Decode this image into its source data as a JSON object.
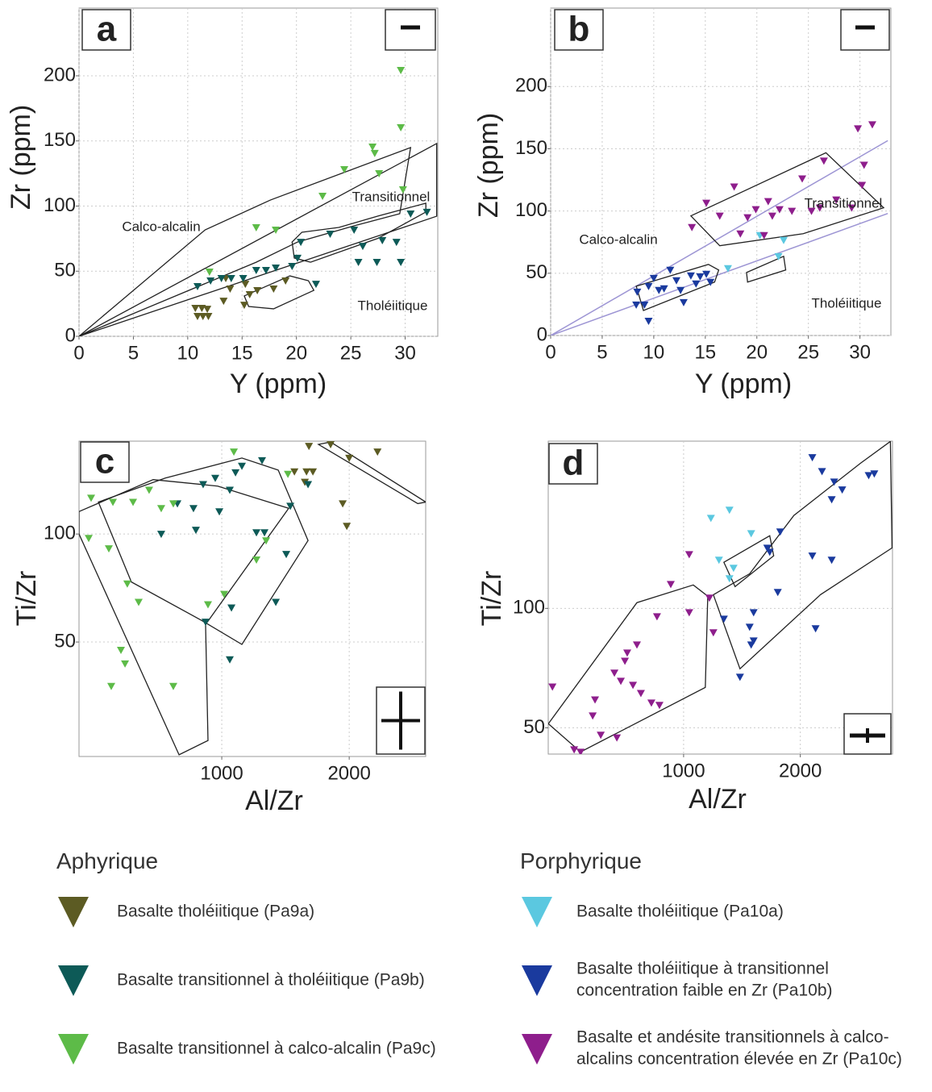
{
  "chart_data": [
    {
      "type": "scatter",
      "title": "a",
      "x_label": "Y (ppm)",
      "y_label": "Zr (ppm)",
      "legend_title": "Aphyrique",
      "xlim": [
        0,
        33
      ],
      "ylim": [
        0,
        252
      ],
      "xticks": [
        0,
        5,
        10,
        15,
        20,
        25,
        30
      ],
      "yticks": [
        0,
        50,
        100,
        150,
        200
      ],
      "grid": true,
      "annotations": [
        "Calco-alcalin",
        "Transitionnel",
        "Tholéiitique"
      ],
      "fields": [
        {
          "x": [
            0,
            11.6,
            17.6,
            30.5,
            29.5,
            25.3,
            20.1,
            16.3
          ],
          "y": [
            0,
            81.7,
            104.6,
            144.9,
            94.1,
            84.8,
            72.4,
            56.9
          ]
        },
        {
          "x": [
            0,
            32.9,
            32.9
          ],
          "y": [
            0,
            148,
            92.2
          ]
        },
        {
          "x": [
            19.6,
            20.5,
            23.9,
            27.5,
            31.9,
            31.9,
            27.5,
            21.3,
            19.8
          ],
          "y": [
            72.4,
            79.9,
            83.6,
            92.3,
            102.2,
            95.4,
            75.2,
            56.9,
            60.1
          ]
        },
        {
          "x": [
            15.2,
            19.4,
            21.1,
            21.6,
            17.9,
            15.6
          ],
          "y": [
            31,
            46.4,
            42.7,
            35.3,
            21.1,
            22.9
          ]
        }
      ],
      "series": [
        {
          "name": "Basalte tholéiitique (Pa9a)",
          "color": "#5c5b23",
          "x": [
            10.7,
            11.3,
            11.8,
            10.9,
            11.4,
            11.9,
            13.5,
            13.9,
            13.3,
            15.3,
            15.7,
            16.4,
            15.2,
            17.9,
            19
          ],
          "values": [
            21.7,
            21.7,
            21,
            15.5,
            15.5,
            15.5,
            44.6,
            36.5,
            27.2,
            40.2,
            32.2,
            35.3,
            24.1,
            36.5,
            42.7
          ]
        },
        {
          "name": "Basalte transitionnel à tholéiitique (Pa9b)",
          "color": "#0d5a57",
          "x": [
            10.9,
            12.1,
            13.1,
            14,
            15.1,
            16.3,
            17.2,
            18.1,
            19.6,
            20.1,
            20.4,
            21.8,
            23.1,
            25.3,
            26.1,
            25.7,
            27.4,
            27.9,
            29.2,
            29.6,
            30.5,
            32
          ],
          "values": [
            38.4,
            42.7,
            44.6,
            44.6,
            44.6,
            50.8,
            50.8,
            52.6,
            53.9,
            60.1,
            72.4,
            40.2,
            78.6,
            81.7,
            69.3,
            57,
            57,
            73.7,
            72.4,
            57,
            94.1,
            95.4
          ]
        },
        {
          "name": "Basalte transitionnel à calco-alcalin (Pa9c)",
          "color": "#5dbb48",
          "x": [
            29.6,
            29.6,
            27,
            27.2,
            24.4,
            27.6,
            22.4,
            16.3,
            18.1,
            12,
            29.8
          ],
          "values": [
            204.3,
            160.4,
            145.5,
            140.6,
            128.2,
            125.1,
            107.7,
            83.6,
            81.7,
            49.5,
            112.7
          ]
        }
      ]
    },
    {
      "type": "scatter",
      "title": "b",
      "x_label": "Y (ppm)",
      "y_label": "Zr (ppm)",
      "legend_title": "Porphyrique",
      "xlim": [
        0,
        33
      ],
      "ylim": [
        0,
        263
      ],
      "xticks": [
        0,
        5,
        10,
        15,
        20,
        25,
        30
      ],
      "yticks": [
        0,
        50,
        100,
        150,
        200
      ],
      "grid": true,
      "annotations": [
        "Calco-alcalin",
        "Transitionnel",
        "Tholéiitique"
      ],
      "boundaries": [
        {
          "x": [
            0,
            32.7
          ],
          "y": [
            0,
            156.5
          ],
          "color": "#9d95d4"
        },
        {
          "x": [
            0,
            32.7
          ],
          "y": [
            0,
            98
          ],
          "color": "#9d95d4"
        }
      ],
      "fields": [
        {
          "x": [
            13.6,
            16.4,
            24.5,
            32.3,
            26.7
          ],
          "y": [
            96.1,
            72.1,
            81.8,
            102.6,
            146.8
          ]
        },
        {
          "x": [
            8.3,
            15.3,
            16.3,
            15.9,
            9
          ],
          "y": [
            39.6,
            57.1,
            52.6,
            42.9,
            20.1
          ]
        },
        {
          "x": [
            19,
            22.6,
            22.8,
            19.1
          ],
          "y": [
            50.6,
            63.6,
            52.6,
            42.9
          ]
        }
      ],
      "series": [
        {
          "name": "Basalte tholéiitique (Pa10a)",
          "color": "#5bc8e0",
          "x": [
            22.6,
            22.1,
            17.2,
            20.3
          ],
          "values": [
            76.6,
            63.6,
            53.9,
            80.5
          ]
        },
        {
          "name": "Basalte tholéiitique à transitionnel concentration faible en Zr (Pa10b)",
          "color": "#1a3a9e",
          "x": [
            8.4,
            9.1,
            9.5,
            10,
            10.5,
            11,
            11.6,
            12.2,
            12.6,
            12.9,
            13.6,
            14.1,
            14.5,
            15.1,
            15.5,
            9.5,
            8.3
          ],
          "values": [
            35.1,
            24.7,
            39.6,
            46.1,
            36.4,
            37.7,
            52.6,
            44.2,
            36.4,
            26.6,
            48.1,
            41.6,
            47.4,
            49.4,
            42.9,
            11.7,
            24.7
          ]
        },
        {
          "name": "Basalte et andésite transitionnels à calco-alcalins concentration élevée en Zr (Pa10c)",
          "color": "#8e1e8c",
          "x": [
            15.1,
            17.8,
            13.7,
            16.4,
            19.9,
            21.1,
            22.2,
            23.4,
            24.4,
            26.5,
            29.8,
            31.2,
            30.4,
            20.7,
            18.4,
            19.1,
            21.5,
            25.3,
            26.1,
            27.7,
            29.2,
            30.2
          ],
          "values": [
            106.5,
            119.5,
            87,
            96.1,
            101.3,
            107.8,
            101.3,
            100,
            126,
            140.3,
            166.2,
            169.5,
            137,
            80.5,
            81.8,
            94.8,
            96.1,
            100,
            102.6,
            109.1,
            102.6,
            120.8
          ]
        }
      ]
    },
    {
      "type": "scatter",
      "title": "c",
      "x_label": "Al/Zr",
      "y_label": "Ti/Zr",
      "xlim": [
        -120,
        2600
      ],
      "ylim": [
        -3,
        143
      ],
      "xticks": [
        1000,
        2000
      ],
      "yticks": [
        50,
        100
      ],
      "grid": true,
      "fields": [
        {
          "x": [
            32,
            557,
            1158,
            1443,
            1677,
            1158,
            842,
            291
          ],
          "y": [
            114.8,
            125.9,
            135.2,
            129.6,
            97,
            48.9,
            60,
            77.8
          ]
        },
        {
          "x": [
            -120,
            462,
            968,
            1525,
            873,
            892,
            665,
            -120
          ],
          "y": [
            110.4,
            125.2,
            122.2,
            111.9,
            58.1,
            4.4,
            -2.2,
            100
          ]
        },
        {
          "x": [
            1759,
            1854,
            2601,
            2538
          ],
          "y": [
            141.5,
            142.6,
            114.8,
            114.1
          ]
        }
      ],
      "series": [
        {
          "color": "#5c5b23",
          "x": [
            1684,
            2222,
            1854,
            2000,
            1665,
            1715,
            1570,
            1652,
            1949,
            1981
          ],
          "values": [
            140.7,
            138.1,
            141.5,
            135.2,
            128.9,
            128.9,
            128.9,
            124.1,
            114.1,
            103.7
          ]
        },
        {
          "color": "#0d5a57",
          "x": [
            1316,
            1158,
            1108,
            949,
            854,
            1063,
            778,
            981,
            797,
            525,
            652,
            1272,
            1335,
            1506,
            1424,
            1076,
            873,
            1063,
            1677,
            1538
          ],
          "values": [
            134.1,
            131.5,
            128.5,
            125.9,
            123,
            120.4,
            111.9,
            110.4,
            101.9,
            100,
            114.1,
            100.7,
            100.7,
            90.7,
            68.5,
            65.9,
            59.3,
            41.9,
            123,
            113
          ]
        },
        {
          "color": "#5dbb48",
          "x": [
            1095,
            -25,
            146,
            304,
            430,
            525,
            620,
            -44,
            114,
            259,
            348,
            209,
            241,
            133,
            620,
            892,
            1019,
            1272,
            1348,
            1519
          ],
          "values": [
            138.1,
            116.7,
            114.8,
            114.8,
            120.4,
            111.9,
            114.1,
            98.1,
            93.3,
            77,
            68.5,
            46.3,
            40,
            29.6,
            29.6,
            67.4,
            72.2,
            88.1,
            97,
            127.8
          ]
        }
      ]
    },
    {
      "type": "scatter",
      "title": "d",
      "x_label": "Al/Zr",
      "y_label": "Ti/Zr",
      "xlim": [
        -160,
        2790
      ],
      "ylim": [
        39,
        170
      ],
      "xticks": [
        1000,
        2000
      ],
      "yticks": [
        50,
        100
      ],
      "grid": true,
      "fields": [
        {
          "x": [
            -159,
            117,
            1186,
            1207,
            1083,
            600
          ],
          "y": [
            51.7,
            39.9,
            66.9,
            105.1,
            109.8,
            102.4
          ]
        },
        {
          "x": [
            1255,
            1483,
            2172,
            2786,
            2772,
            2517,
            1945,
            1566
          ],
          "y": [
            105.7,
            74.7,
            105.7,
            125.3,
            169.9,
            160.8,
            138.9,
            114.5
          ]
        },
        {
          "x": [
            1345,
            1738,
            1772,
            1441
          ],
          "y": [
            119.3,
            130.4,
            122,
            109.1
          ]
        }
      ],
      "series": [
        {
          "color": "#5bc8e0",
          "x": [
            1234,
            1393,
            1579,
            1303,
            1428,
            1393
          ],
          "values": [
            137.8,
            141.2,
            131.4,
            120.3,
            116.9,
            112.5
          ]
        },
        {
          "color": "#1a3a9e",
          "x": [
            2103,
            2186,
            2290,
            2359,
            2269,
            2586,
            2634,
            1738,
            1828,
            1717,
            1807,
            1345,
            1600,
            1566,
            1600,
            1579,
            1483,
            2103,
            2269,
            2131
          ],
          "values": [
            163.2,
            157.4,
            153,
            149.7,
            145.6,
            155.7,
            156.4,
            123.6,
            132.1,
            125.3,
            106.8,
            95.6,
            98.3,
            92.2,
            86.5,
            84.8,
            71.3,
            122,
            120.3,
            91.6
          ]
        },
        {
          "color": "#8e1e8c",
          "x": [
            1048,
            890,
            1221,
            1048,
            1255,
            772,
            600,
            517,
            497,
            407,
            462,
            566,
            634,
            724,
            793,
            241,
            221,
            -124,
            290,
            428,
            62,
            117
          ],
          "values": [
            122.6,
            110.1,
            104.4,
            98.3,
            89.9,
            96.6,
            84.8,
            81.4,
            78,
            73,
            69.6,
            67.9,
            64.5,
            60.5,
            59.5,
            61.8,
            55.1,
            67.2,
            47,
            45.9,
            40.9,
            39.9
          ]
        }
      ]
    }
  ]
}
